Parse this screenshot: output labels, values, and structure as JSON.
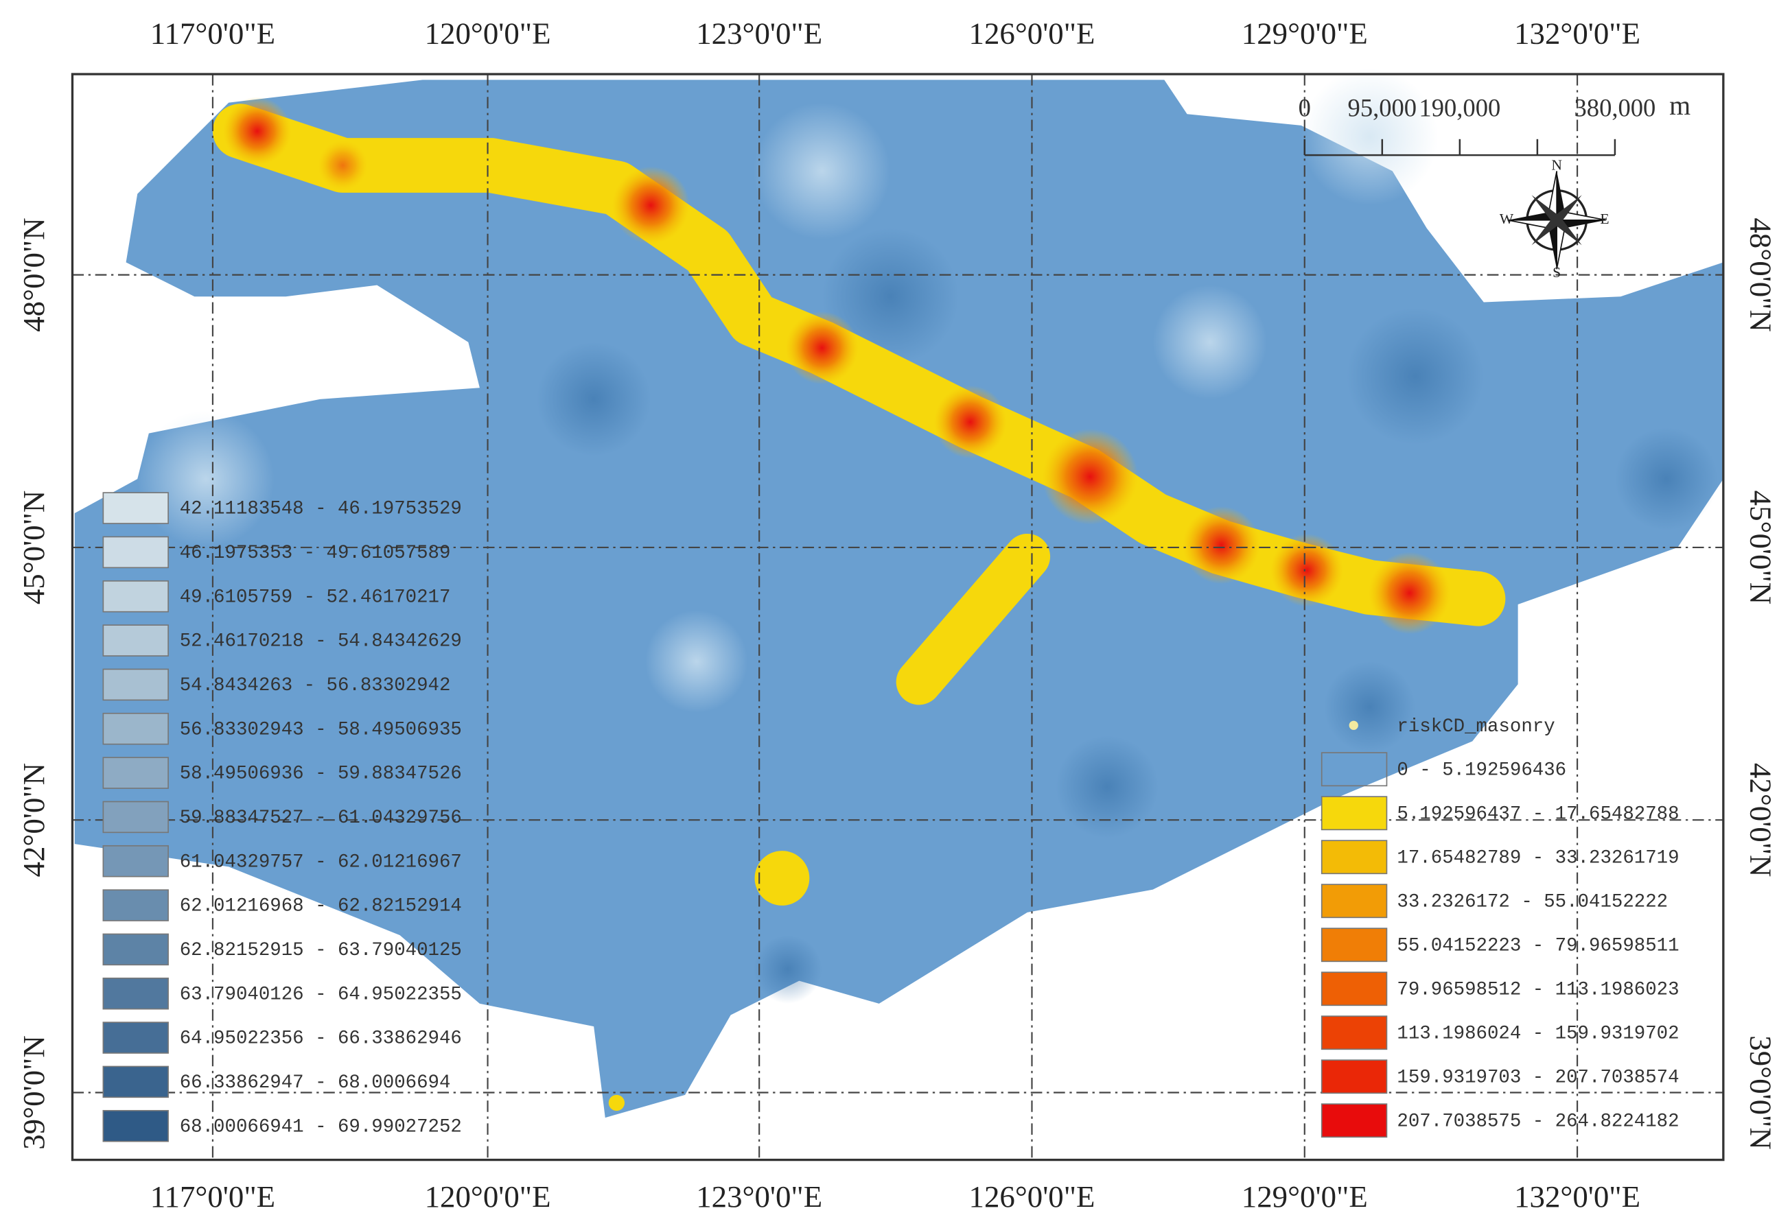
{
  "map": {
    "top_labels": [
      "117°0'0\"E",
      "120°0'0\"E",
      "123°0'0\"E",
      "126°0'0\"E",
      "129°0'0\"E",
      "132°0'0\"E"
    ],
    "bottom_labels": [
      "117°0'0\"E",
      "120°0'0\"E",
      "123°0'0\"E",
      "126°0'0\"E",
      "129°0'0\"E",
      "132°0'0\"E"
    ],
    "left_labels": [
      "48°0'0\"N",
      "45°0'0\"N",
      "42°0'0\"N",
      "39°0'0\"N"
    ],
    "right_labels": [
      "48°0'0\"N",
      "45°0'0\"N",
      "42°0'0\"N",
      "39°0'0\"N"
    ],
    "scale_bar": {
      "labels": [
        "0",
        "95,000",
        "190,000",
        "380,000"
      ],
      "unit": "m"
    },
    "north_arrow": {
      "n": "N",
      "s": "S",
      "e": "E",
      "w": "W"
    },
    "left_legend": {
      "items": [
        {
          "label": "42.11183548 - 46.19753529",
          "color": "#d6e3ea"
        },
        {
          "label": "46.1975353 - 49.61057589",
          "color": "#cddce6"
        },
        {
          "label": "49.6105759 - 52.46170217",
          "color": "#c1d3df"
        },
        {
          "label": "52.46170218 - 54.84342629",
          "color": "#b5cad9"
        },
        {
          "label": "54.8434263 - 56.83302942",
          "color": "#a8c0d2"
        },
        {
          "label": "56.83302943 - 58.49506935",
          "color": "#9bb6cb"
        },
        {
          "label": "58.49506936 - 59.88347526",
          "color": "#8eabc4"
        },
        {
          "label": "59.88347527 - 61.04329756",
          "color": "#82a1bd"
        },
        {
          "label": "61.04329757 - 62.01216967",
          "color": "#7597b6"
        },
        {
          "label": "62.01216968 - 62.82152914",
          "color": "#698dae"
        },
        {
          "label": "62.82152915 - 63.79040125",
          "color": "#5d83a6"
        },
        {
          "label": "63.79040126 - 64.95022355",
          "color": "#51789e"
        },
        {
          "label": "64.95022356 - 66.33862946",
          "color": "#466e96"
        },
        {
          "label": "66.33862947 - 68.0006694",
          "color": "#3a648e"
        },
        {
          "label": "68.00066941 - 69.99027252",
          "color": "#2f5a86"
        }
      ]
    },
    "right_legend": {
      "title": "riskCD_masonry",
      "items": [
        {
          "label": "0 - 5.192596436",
          "color": "none"
        },
        {
          "label": "5.192596437 - 17.65482788",
          "color": "#f6d80c"
        },
        {
          "label": "17.65482789 - 33.23261719",
          "color": "#f3bb06"
        },
        {
          "label": "33.2326172 - 55.04152222",
          "color": "#f29c06"
        },
        {
          "label": "55.04152223 - 79.96598511",
          "color": "#f07e06"
        },
        {
          "label": "79.96598512 - 113.1986023",
          "color": "#ee6005"
        },
        {
          "label": "113.1986024 - 159.9319702",
          "color": "#ec4205"
        },
        {
          "label": "159.9319703 - 207.7038574",
          "color": "#ea2707"
        },
        {
          "label": "207.7038575 - 264.8224182",
          "color": "#e80c0c"
        }
      ]
    }
  }
}
